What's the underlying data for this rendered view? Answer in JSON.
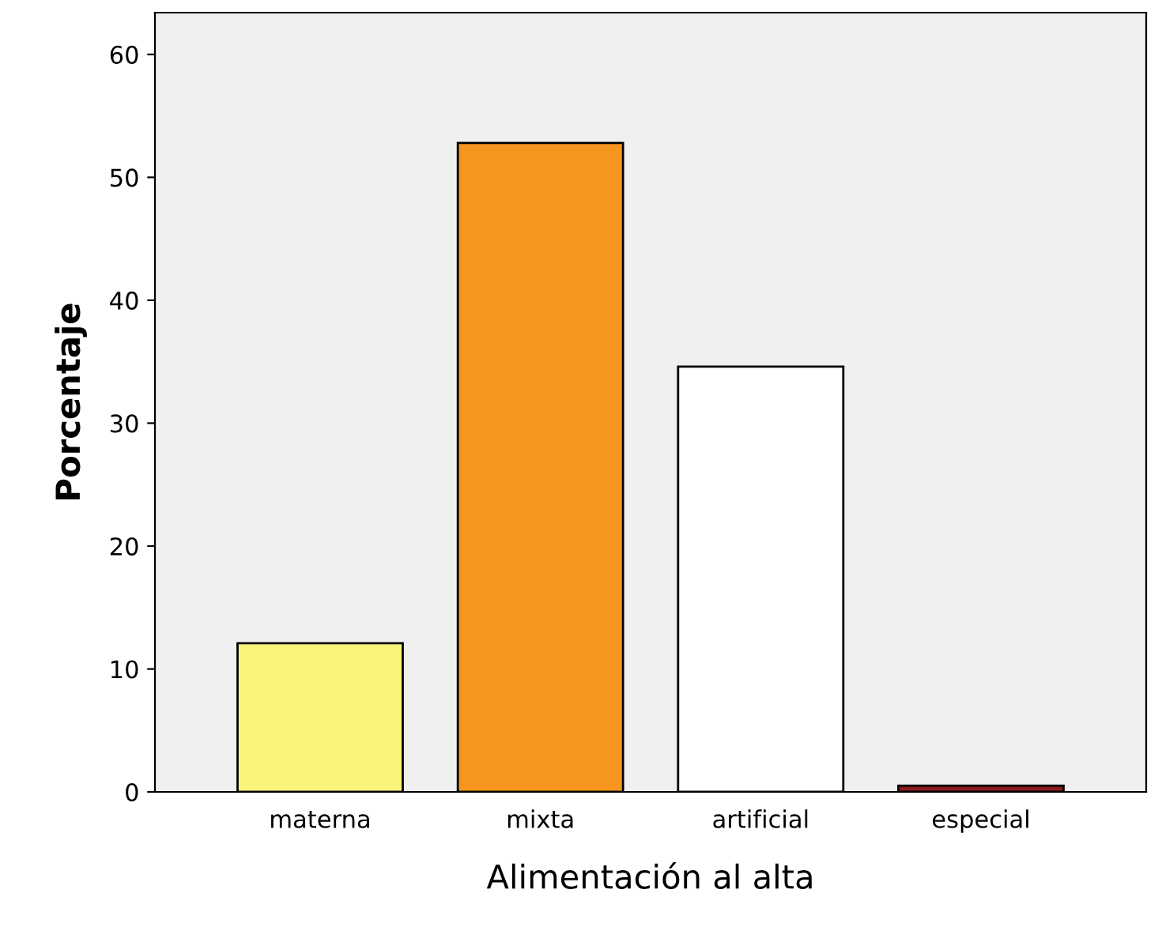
{
  "chart_data": {
    "type": "bar",
    "xlabel": "Alimentación al alta",
    "ylabel": "Porcentaje",
    "categories": [
      "materna",
      "mixta",
      "artificial",
      "especial"
    ],
    "values": [
      12.1,
      52.8,
      34.6,
      0.5
    ],
    "colors": [
      "#f8f57a",
      "#f7961e",
      "#ffffff",
      "#8b1a1a"
    ],
    "ylim": [
      0,
      63.4
    ],
    "yticks": [
      0,
      10,
      20,
      30,
      40,
      50,
      60
    ],
    "grid": false
  }
}
